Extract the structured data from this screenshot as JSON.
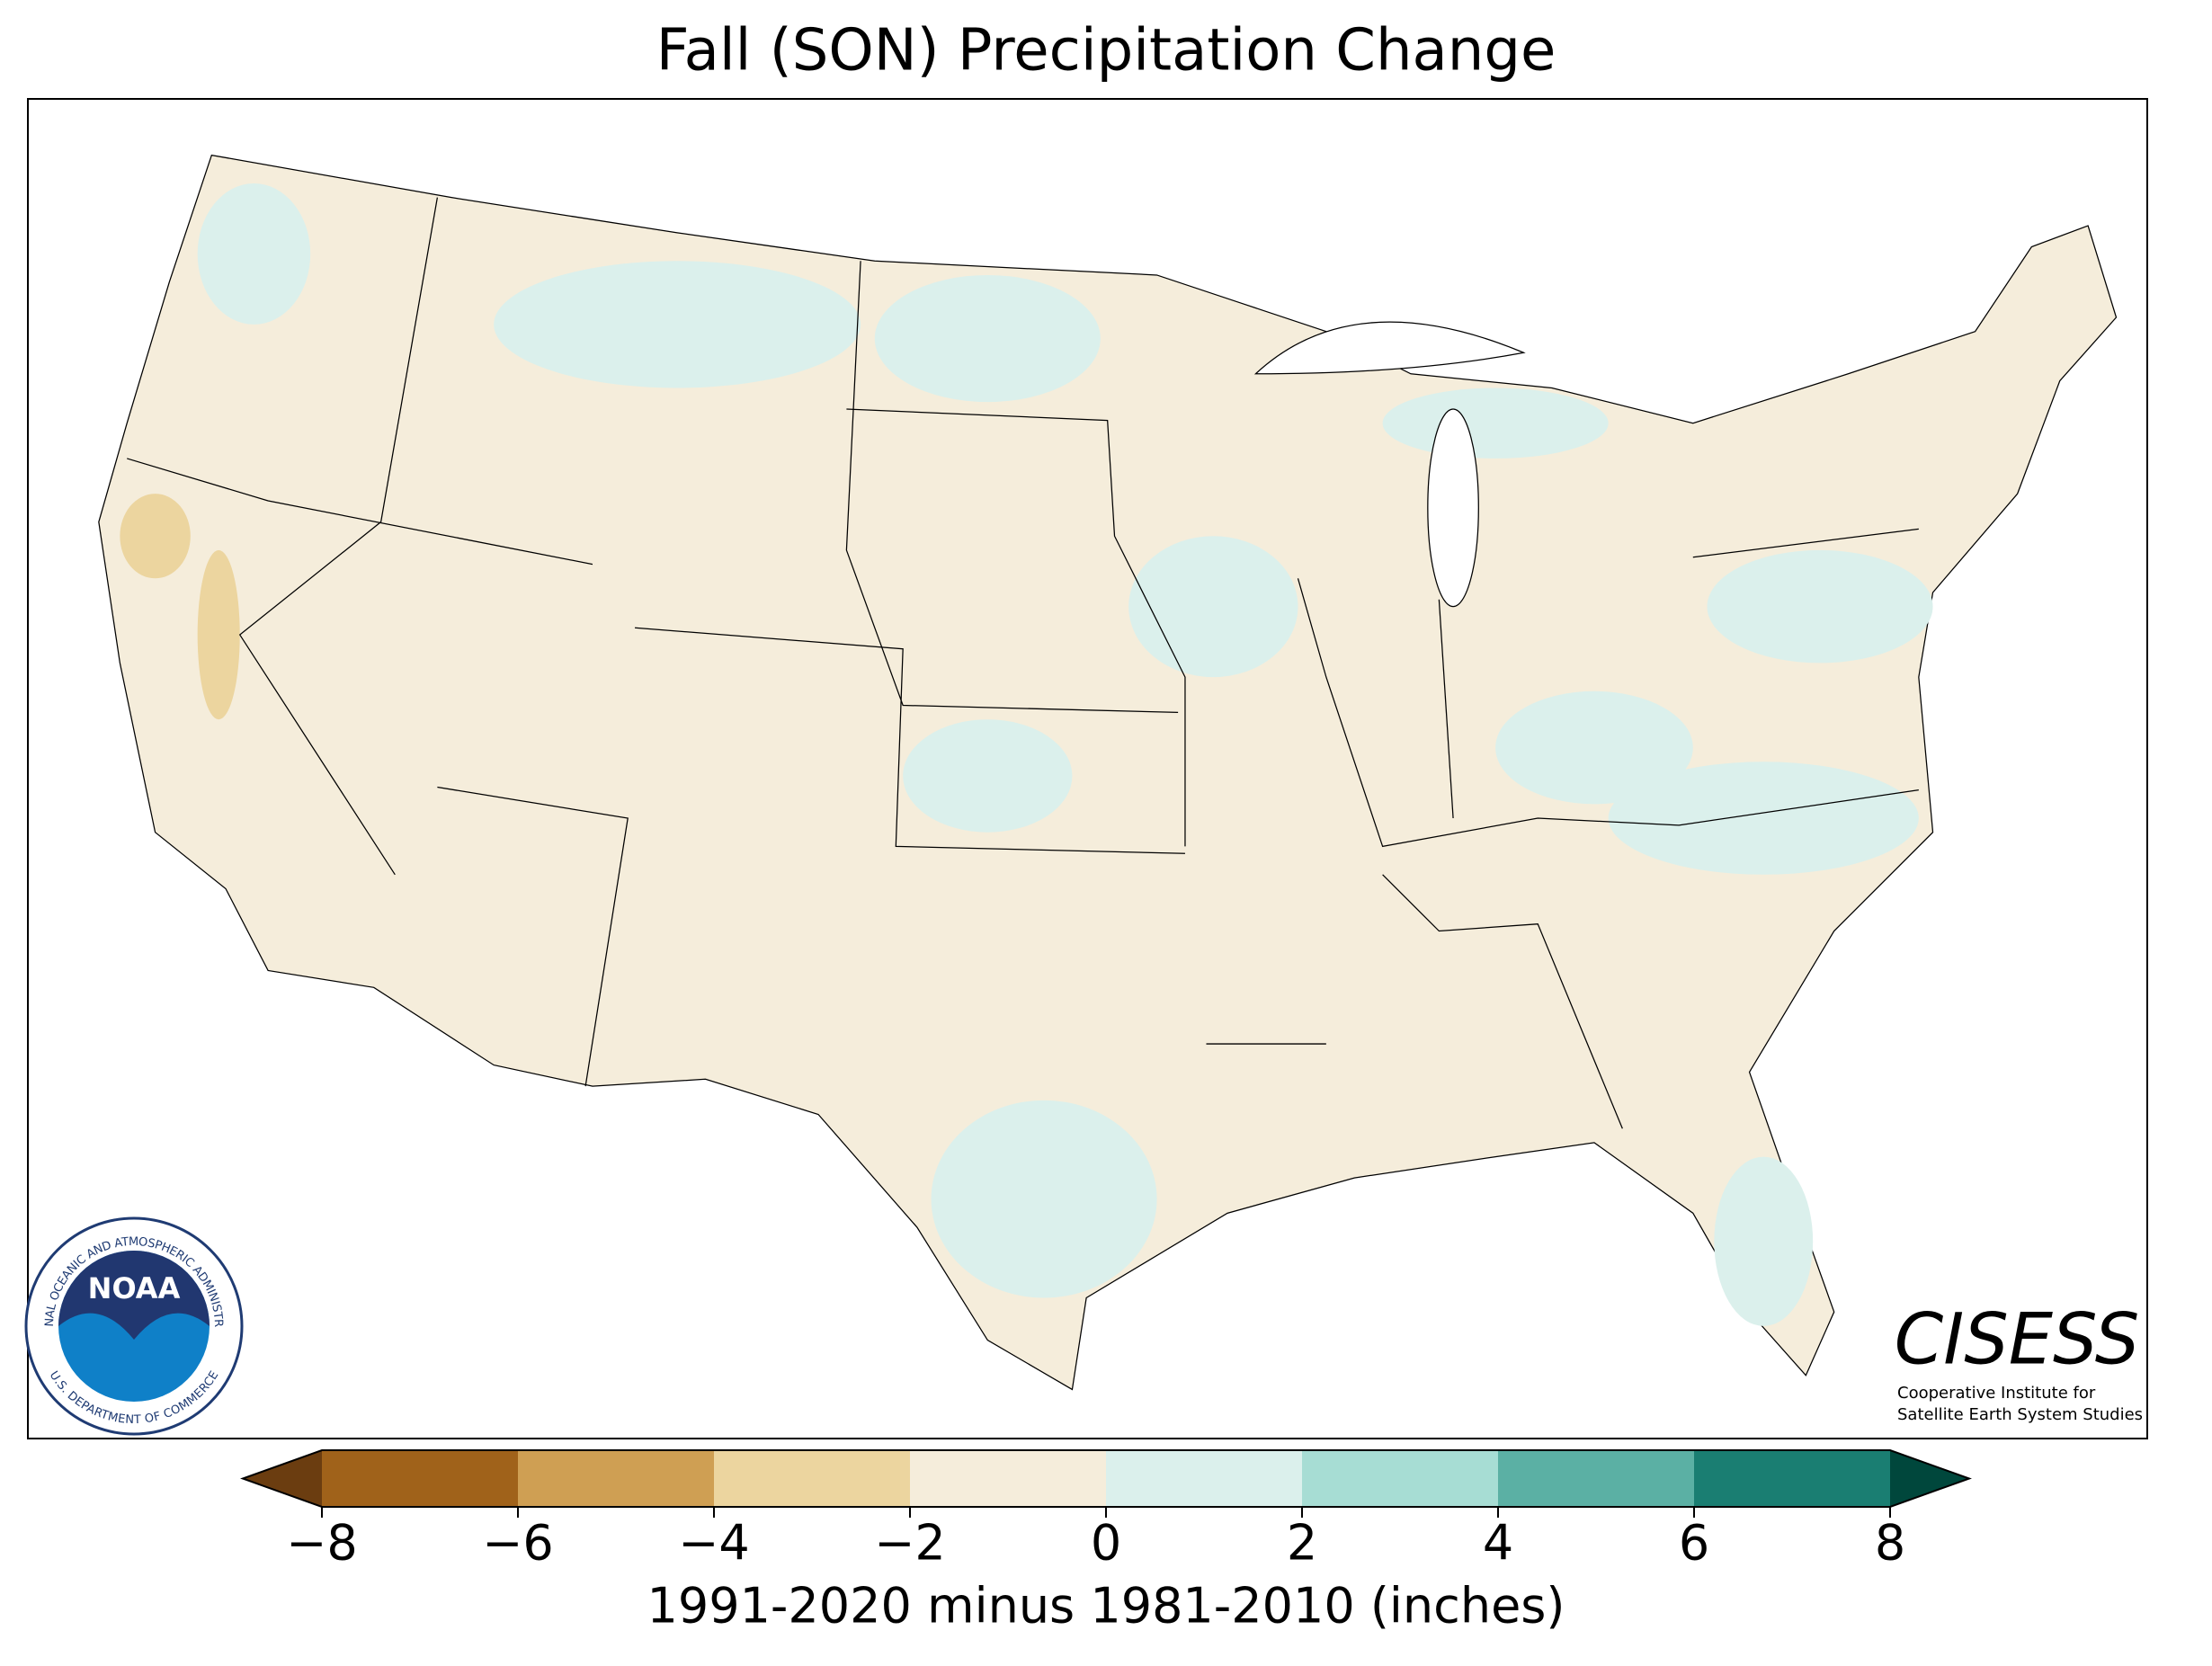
{
  "title": "Fall (SON) Precipitation Change",
  "colorbar": {
    "label": "1991-2020 minus 1981-2010 (inches)",
    "xlim": [
      -8,
      8
    ],
    "xticks": [
      {
        "value": -8,
        "label": "−8"
      },
      {
        "value": -6,
        "label": "−6"
      },
      {
        "value": -4,
        "label": "−4"
      },
      {
        "value": -2,
        "label": "−2"
      },
      0,
      2,
      4,
      6,
      8
    ],
    "colors": [
      "#a0621a",
      "#cf9f53",
      "#ecd59f",
      "#f5eddb",
      "#dbf0ec",
      "#a7ddd4",
      "#5bb0a4",
      "#1a7e72"
    ],
    "under_color": "#6b3d10",
    "over_color": "#00473c"
  },
  "noaa_logo": {
    "name": "NOAA",
    "top_text": "NATIONAL OCEANIC AND ATMOSPHERIC ADMINISTRATION",
    "bottom_text": "U.S. DEPARTMENT OF COMMERCE"
  },
  "cisess_logo": {
    "name": "CISESS",
    "line1": "Cooperative Institute for",
    "line2": "Satellite Earth System Studies"
  }
}
